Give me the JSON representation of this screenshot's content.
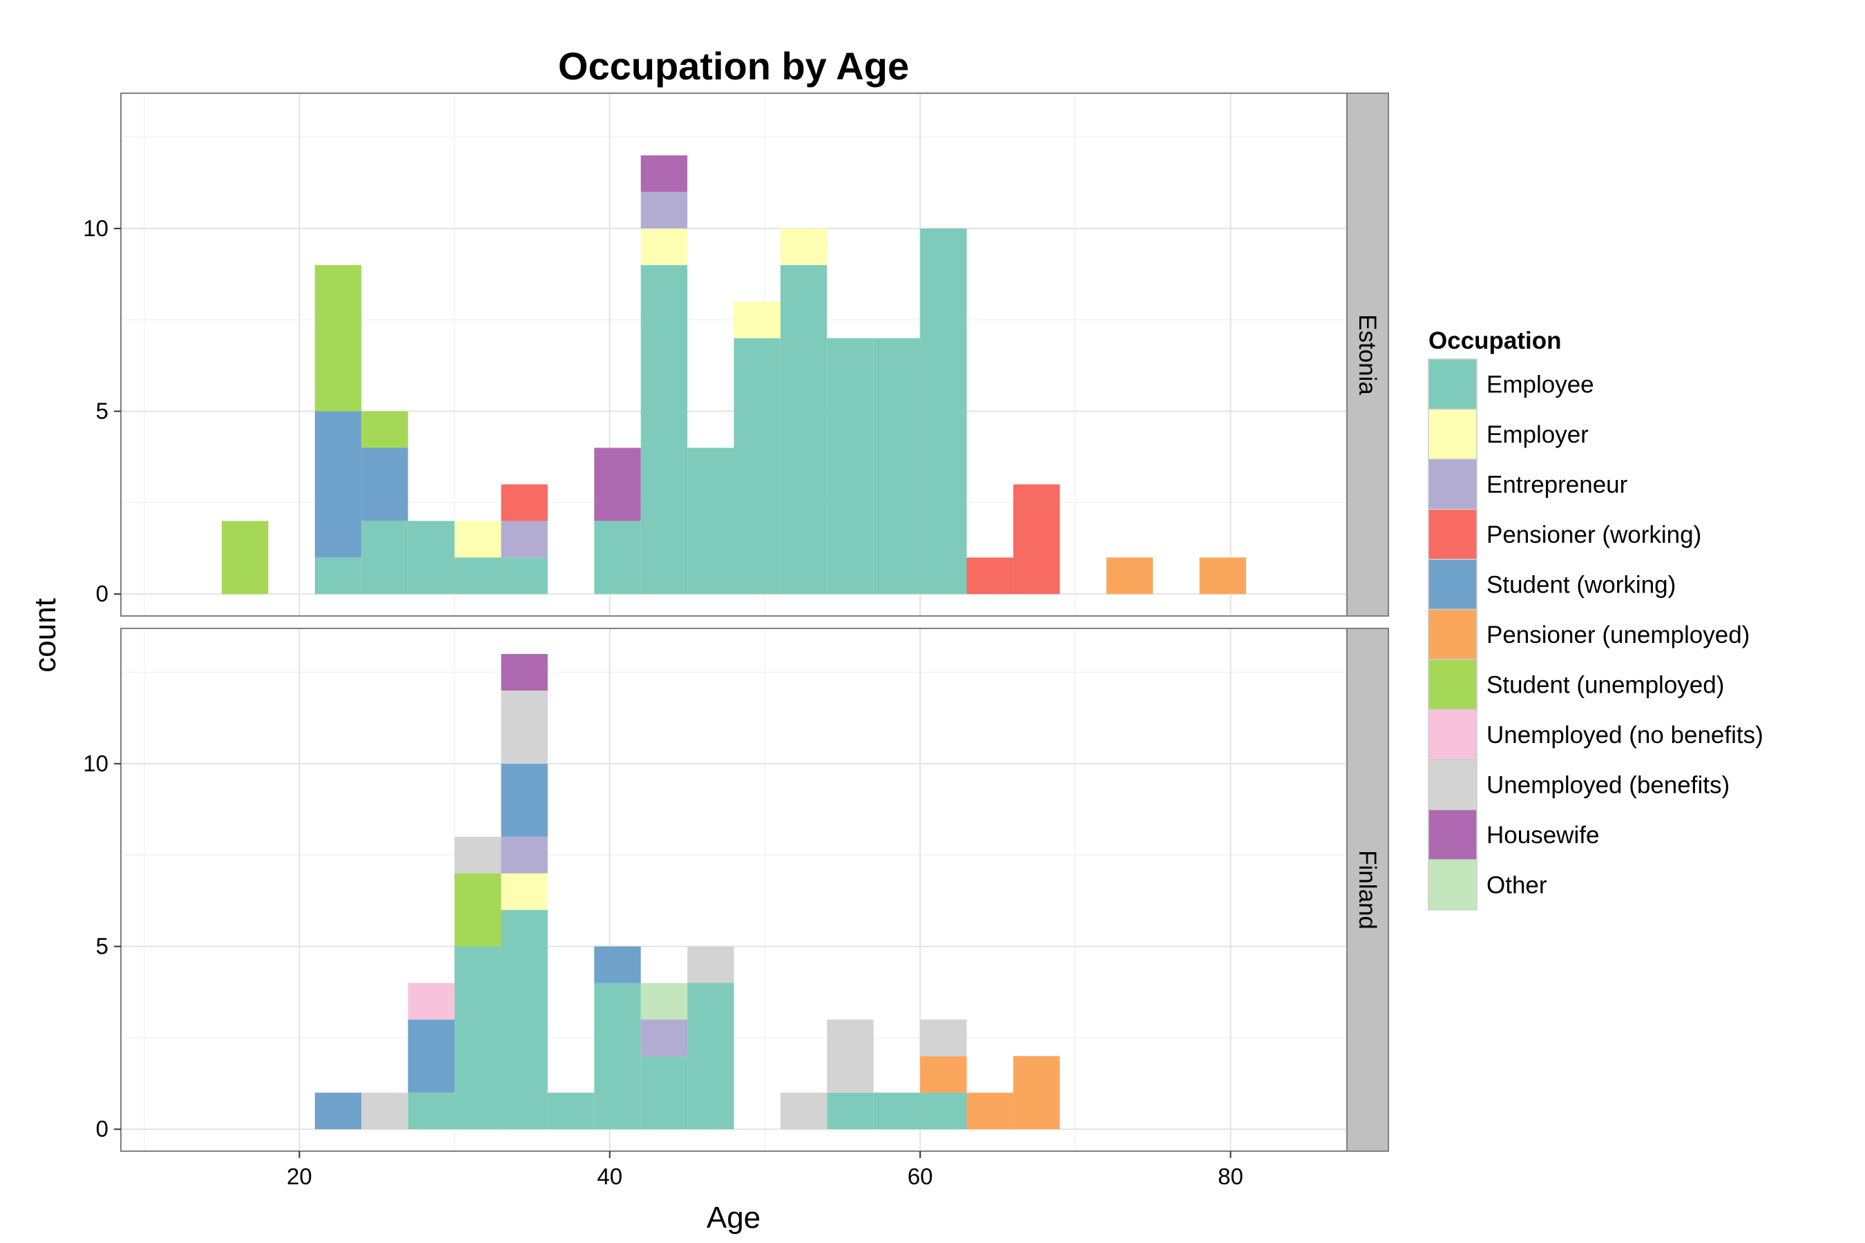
{
  "chart_data": {
    "type": "bar",
    "subtype": "stacked-histogram-faceted",
    "title": "Occupation by Age",
    "xlabel": "Age",
    "ylabel": "count",
    "xlim": [
      8.5,
      87.5
    ],
    "ylim": [
      -0.6,
      13.7
    ],
    "x_ticks": [
      20,
      40,
      60,
      80
    ],
    "y_ticks": [
      0,
      5,
      10
    ],
    "grid": true,
    "legend_position": "right",
    "legend": {
      "title": "Occupation",
      "entries": [
        {
          "name": "Employee",
          "color": "#7fcbbb"
        },
        {
          "name": "Employer",
          "color": "#ffffb3"
        },
        {
          "name": "Entrepreneur",
          "color": "#b2acd2"
        },
        {
          "name": "Pensioner (working)",
          "color": "#f76b62"
        },
        {
          "name": "Student (working)",
          "color": "#6fa2cb"
        },
        {
          "name": "Pensioner (unemployed)",
          "color": "#fba65d"
        },
        {
          "name": "Student (unemployed)",
          "color": "#a5d857"
        },
        {
          "name": "Unemployed (no benefits)",
          "color": "#f8c2dd"
        },
        {
          "name": "Unemployed (benefits)",
          "color": "#d3d3d3"
        },
        {
          "name": "Housewife",
          "color": "#ae69b0"
        },
        {
          "name": "Other",
          "color": "#c3e6bc"
        }
      ]
    },
    "bin_width": 3,
    "bin_starts": [
      15,
      18,
      21,
      24,
      27,
      30,
      33,
      36,
      39,
      42,
      45,
      48,
      51,
      54,
      57,
      60,
      63,
      66,
      69,
      72,
      75,
      78
    ],
    "facets": [
      {
        "name": "Estonia",
        "series": [
          {
            "name": "Employee",
            "values": [
              0,
              0,
              1,
              2,
              2,
              1,
              1,
              0,
              2,
              9,
              4,
              7,
              9,
              7,
              7,
              10,
              0,
              0,
              0,
              0,
              0,
              0
            ]
          },
          {
            "name": "Employer",
            "values": [
              0,
              0,
              0,
              0,
              0,
              1,
              0,
              0,
              0,
              1,
              0,
              1,
              1,
              0,
              0,
              0,
              0,
              0,
              0,
              0,
              0,
              0
            ]
          },
          {
            "name": "Entrepreneur",
            "values": [
              0,
              0,
              0,
              0,
              0,
              0,
              1,
              0,
              0,
              1,
              0,
              0,
              0,
              0,
              0,
              0,
              0,
              0,
              0,
              0,
              0,
              0
            ]
          },
          {
            "name": "Pensioner (working)",
            "values": [
              0,
              0,
              0,
              0,
              0,
              0,
              1,
              0,
              0,
              0,
              0,
              0,
              0,
              0,
              0,
              0,
              1,
              3,
              0,
              0,
              0,
              0
            ]
          },
          {
            "name": "Student (working)",
            "values": [
              0,
              0,
              4,
              2,
              0,
              0,
              0,
              0,
              0,
              0,
              0,
              0,
              0,
              0,
              0,
              0,
              0,
              0,
              0,
              0,
              0,
              0
            ]
          },
          {
            "name": "Pensioner (unemployed)",
            "values": [
              0,
              0,
              0,
              0,
              0,
              0,
              0,
              0,
              0,
              0,
              0,
              0,
              0,
              0,
              0,
              0,
              0,
              0,
              0,
              1,
              0,
              1
            ]
          },
          {
            "name": "Student (unemployed)",
            "values": [
              2,
              0,
              4,
              1,
              0,
              0,
              0,
              0,
              0,
              0,
              0,
              0,
              0,
              0,
              0,
              0,
              0,
              0,
              0,
              0,
              0,
              0
            ]
          },
          {
            "name": "Unemployed (no benefits)",
            "values": [
              0,
              0,
              0,
              0,
              0,
              0,
              0,
              0,
              0,
              0,
              0,
              0,
              0,
              0,
              0,
              0,
              0,
              0,
              0,
              0,
              0,
              0
            ]
          },
          {
            "name": "Unemployed (benefits)",
            "values": [
              0,
              0,
              0,
              0,
              0,
              0,
              0,
              0,
              0,
              0,
              0,
              0,
              0,
              0,
              0,
              0,
              0,
              0,
              0,
              0,
              0,
              0
            ]
          },
          {
            "name": "Housewife",
            "values": [
              0,
              0,
              0,
              0,
              0,
              0,
              0,
              0,
              2,
              1,
              0,
              0,
              0,
              0,
              0,
              0,
              0,
              0,
              0,
              0,
              0,
              0
            ]
          },
          {
            "name": "Other",
            "values": [
              0,
              0,
              0,
              0,
              0,
              0,
              0,
              0,
              0,
              0,
              0,
              0,
              0,
              0,
              0,
              0,
              0,
              0,
              0,
              0,
              0,
              0
            ]
          }
        ]
      },
      {
        "name": "Finland",
        "series": [
          {
            "name": "Employee",
            "values": [
              0,
              0,
              0,
              0,
              1,
              5,
              6,
              1,
              4,
              2,
              4,
              0,
              0,
              1,
              1,
              1,
              0,
              0,
              0,
              0,
              0,
              0
            ]
          },
          {
            "name": "Employer",
            "values": [
              0,
              0,
              0,
              0,
              0,
              0,
              1,
              0,
              0,
              0,
              0,
              0,
              0,
              0,
              0,
              0,
              0,
              0,
              0,
              0,
              0,
              0
            ]
          },
          {
            "name": "Entrepreneur",
            "values": [
              0,
              0,
              0,
              0,
              0,
              0,
              1,
              0,
              0,
              1,
              0,
              0,
              0,
              0,
              0,
              0,
              0,
              0,
              0,
              0,
              0,
              0
            ]
          },
          {
            "name": "Pensioner (working)",
            "values": [
              0,
              0,
              0,
              0,
              0,
              0,
              0,
              0,
              0,
              0,
              0,
              0,
              0,
              0,
              0,
              0,
              0,
              0,
              0,
              0,
              0,
              0
            ]
          },
          {
            "name": "Student (working)",
            "values": [
              0,
              0,
              1,
              0,
              2,
              0,
              2,
              0,
              1,
              0,
              0,
              0,
              0,
              0,
              0,
              0,
              0,
              0,
              0,
              0,
              0,
              0
            ]
          },
          {
            "name": "Pensioner (unemployed)",
            "values": [
              0,
              0,
              0,
              0,
              0,
              0,
              0,
              0,
              0,
              0,
              0,
              0,
              0,
              0,
              0,
              1,
              1,
              2,
              0,
              0,
              0,
              0
            ]
          },
          {
            "name": "Student (unemployed)",
            "values": [
              0,
              0,
              0,
              0,
              0,
              2,
              0,
              0,
              0,
              0,
              0,
              0,
              0,
              0,
              0,
              0,
              0,
              0,
              0,
              0,
              0,
              0
            ]
          },
          {
            "name": "Unemployed (no benefits)",
            "values": [
              0,
              0,
              0,
              0,
              1,
              0,
              0,
              0,
              0,
              0,
              0,
              0,
              0,
              0,
              0,
              0,
              0,
              0,
              0,
              0,
              0,
              0
            ]
          },
          {
            "name": "Unemployed (benefits)",
            "values": [
              0,
              0,
              0,
              1,
              0,
              1,
              2,
              0,
              0,
              0,
              1,
              0,
              1,
              2,
              0,
              1,
              0,
              0,
              0,
              0,
              0,
              0
            ]
          },
          {
            "name": "Housewife",
            "values": [
              0,
              0,
              0,
              0,
              0,
              0,
              1,
              0,
              0,
              0,
              0,
              0,
              0,
              0,
              0,
              0,
              0,
              0,
              0,
              0,
              0,
              0
            ]
          },
          {
            "name": "Other",
            "values": [
              0,
              0,
              0,
              0,
              0,
              0,
              0,
              0,
              0,
              1,
              0,
              0,
              0,
              0,
              0,
              0,
              0,
              0,
              0,
              0,
              0,
              0
            ]
          }
        ]
      }
    ]
  }
}
